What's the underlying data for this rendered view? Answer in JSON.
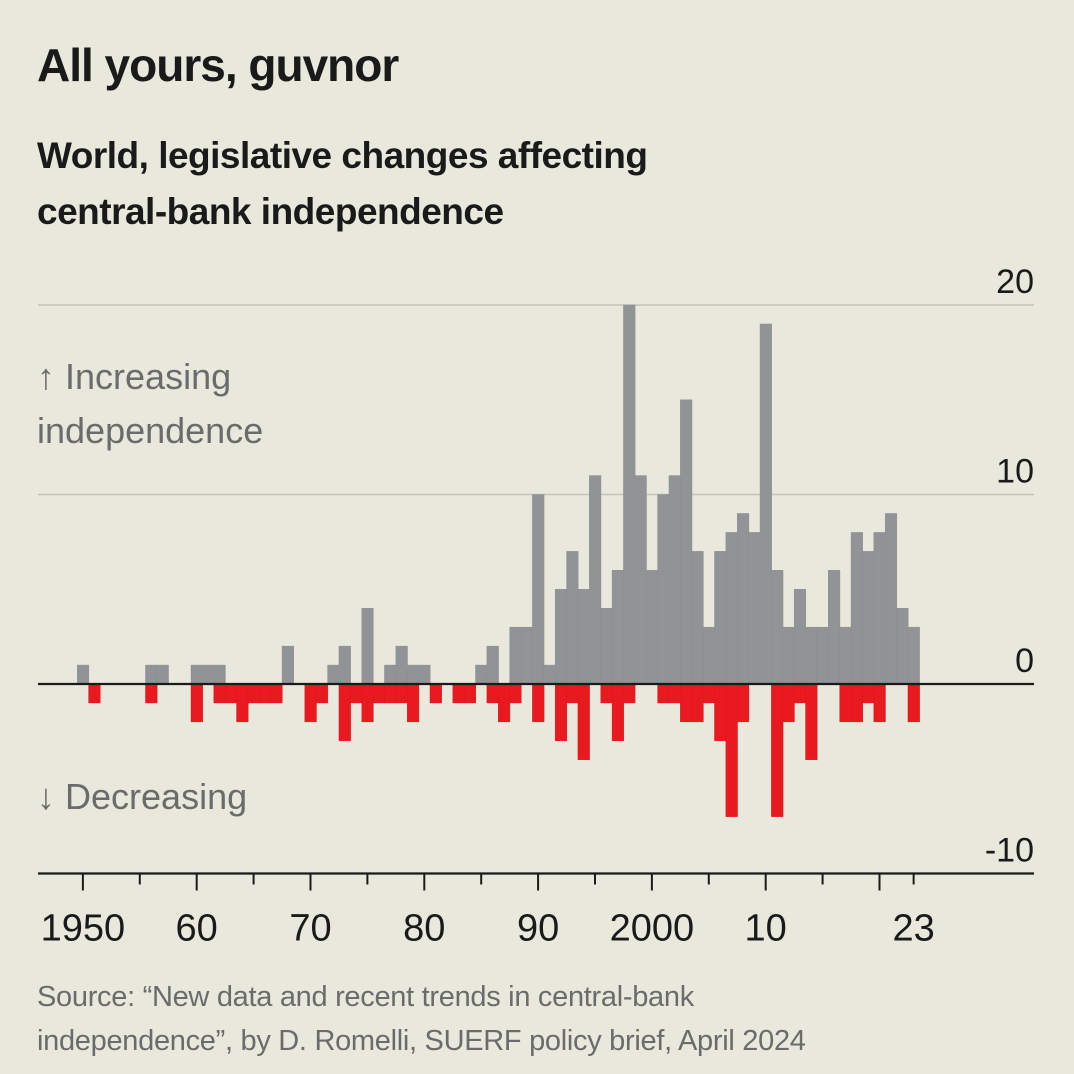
{
  "header": {
    "title": "All yours, guvnor",
    "subtitle_line1": "World, legislative changes affecting",
    "subtitle_line2": "central-bank independence"
  },
  "footer": {
    "source_line1": "Source: “New data and recent trends in central-bank",
    "source_line2": "independence”, by D. Romelli, SUERF policy brief, April 2024"
  },
  "chart_data": {
    "type": "bar",
    "title": "All yours, guvnor",
    "subtitle": "World, legislative changes affecting central-bank independence",
    "xlabel": "",
    "ylabel": "",
    "ylim": [
      -10,
      20
    ],
    "xlim": [
      1950,
      2023
    ],
    "y_ticks": [
      20,
      10,
      0,
      -10
    ],
    "y_tick_labels": [
      "20",
      "10",
      "0",
      "-10"
    ],
    "x_tick_labels": [
      {
        "year": 1950,
        "label": "1950"
      },
      {
        "year": 1960,
        "label": "60"
      },
      {
        "year": 1970,
        "label": "70"
      },
      {
        "year": 1980,
        "label": "80"
      },
      {
        "year": 1990,
        "label": "90"
      },
      {
        "year": 2000,
        "label": "2000"
      },
      {
        "year": 2010,
        "label": "10"
      },
      {
        "year": 2023,
        "label": "23"
      }
    ],
    "x_minor_ticks": [
      1955,
      1965,
      1975,
      1985,
      1995,
      2005,
      2015,
      2020
    ],
    "grid": true,
    "annotations": {
      "increasing_arrow": "↑",
      "increasing_line1": "Increasing",
      "increasing_line2": "independence",
      "decreasing_arrow": "↓",
      "decreasing_line1": "Decreasing"
    },
    "colors": {
      "increasing": "#929397",
      "decreasing": "#e8191f",
      "background": "#e9e8dd",
      "gridline": "#c3c3bb",
      "axis": "#1a1a1a"
    },
    "series": [
      {
        "name": "Increasing independence",
        "values": {
          "1950": 1,
          "1956": 1,
          "1957": 1,
          "1960": 1,
          "1961": 1,
          "1962": 1,
          "1968": 2,
          "1972": 1,
          "1973": 2,
          "1975": 4,
          "1977": 1,
          "1978": 2,
          "1979": 1,
          "1980": 1,
          "1985": 1,
          "1986": 2,
          "1988": 3,
          "1989": 3,
          "1990": 10,
          "1991": 1,
          "1992": 5,
          "1993": 7,
          "1994": 5,
          "1995": 11,
          "1996": 4,
          "1997": 6,
          "1998": 20,
          "1999": 11,
          "2000": 6,
          "2001": 10,
          "2002": 11,
          "2003": 15,
          "2004": 7,
          "2005": 3,
          "2006": 7,
          "2007": 8,
          "2008": 9,
          "2009": 8,
          "2010": 19,
          "2011": 6,
          "2012": 3,
          "2013": 5,
          "2014": 3,
          "2015": 3,
          "2016": 6,
          "2017": 3,
          "2018": 8,
          "2019": 7,
          "2020": 8,
          "2021": 9,
          "2022": 4,
          "2023": 3
        }
      },
      {
        "name": "Decreasing independence",
        "values": {
          "1951": -1,
          "1956": -1,
          "1960": -2,
          "1962": -1,
          "1963": -1,
          "1964": -2,
          "1965": -1,
          "1966": -1,
          "1967": -1,
          "1970": -2,
          "1971": -1,
          "1973": -3,
          "1974": -1,
          "1975": -2,
          "1976": -1,
          "1977": -1,
          "1978": -1,
          "1979": -2,
          "1981": -1,
          "1983": -1,
          "1984": -1,
          "1986": -1,
          "1987": -2,
          "1988": -1,
          "1990": -2,
          "1992": -3,
          "1993": -1,
          "1994": -4,
          "1996": -1,
          "1997": -3,
          "1998": -1,
          "2001": -1,
          "2002": -1,
          "2003": -2,
          "2004": -2,
          "2005": -1,
          "2006": -3,
          "2007": -7,
          "2008": -2,
          "2011": -7,
          "2012": -2,
          "2013": -1,
          "2014": -4,
          "2017": -2,
          "2018": -2,
          "2019": -1,
          "2020": -2,
          "2023": -2
        }
      }
    ]
  }
}
